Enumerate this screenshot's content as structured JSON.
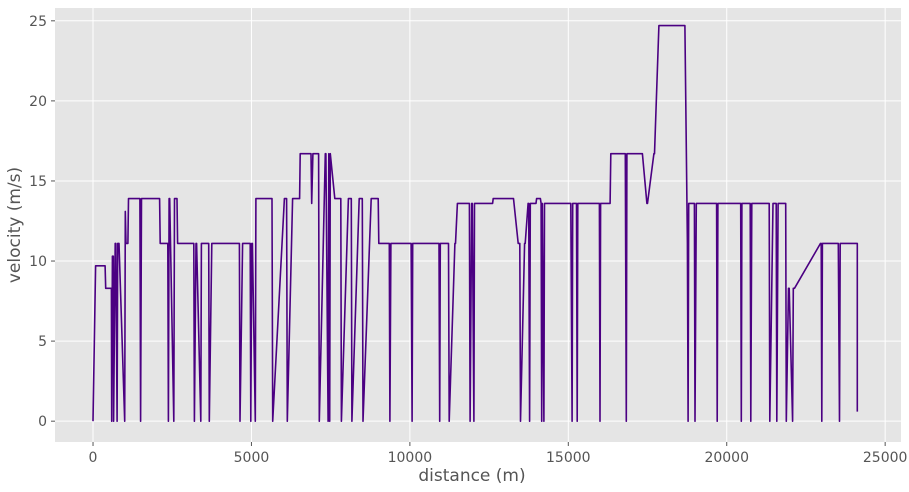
{
  "chart_data": {
    "type": "line",
    "title": "",
    "xlabel": "distance (m)",
    "ylabel": "velocity (m/s)",
    "xlim": [
      -1200,
      25500
    ],
    "ylim": [
      -1.3,
      25.8
    ],
    "x_ticks": [
      0,
      5000,
      10000,
      15000,
      20000,
      25000
    ],
    "x_tick_labels": [
      "0",
      "5000",
      "10000",
      "15000",
      "20000",
      "25000"
    ],
    "y_ticks": [
      0,
      5,
      10,
      15,
      20,
      25
    ],
    "y_tick_labels": [
      "0",
      "5",
      "10",
      "15",
      "20",
      "25"
    ],
    "grid": true,
    "colors": {
      "background": "#e5e5e5",
      "grid": "#ffffff",
      "line": "#4b0082"
    },
    "series": [
      {
        "x": [
          0,
          80,
          380,
          400,
          580,
          590,
          610,
          640,
          650,
          700,
          720,
          760,
          780,
          820,
          1000,
          1020,
          1040,
          1100,
          1120,
          1480,
          1500,
          1530,
          1560,
          2100,
          2120,
          2360,
          2380,
          2400,
          2420,
          2550,
          2570,
          2650,
          2670,
          2860,
          2880,
          3180,
          3200,
          3250,
          3270,
          3400,
          3420,
          3650,
          3670,
          3750,
          3770,
          4620,
          4640,
          4720,
          4740,
          4960,
          4980,
          5010,
          5030,
          5120,
          5140,
          5250,
          5270,
          5650,
          5670,
          6040,
          6060,
          6110,
          6130,
          6300,
          6320,
          6520,
          6540,
          6880,
          6900,
          6940,
          6960,
          7120,
          7140,
          7330,
          7350,
          7420,
          7440,
          7470,
          7490,
          7630,
          7650,
          7820,
          7840,
          8060,
          8080,
          8150,
          8170,
          8400,
          8420,
          8500,
          8520,
          8780,
          8800,
          9000,
          9020,
          9350,
          9370,
          9400,
          9420,
          10020,
          10040,
          10070,
          10090,
          10920,
          10940,
          10960,
          10980,
          11220,
          11240,
          11420,
          11440,
          11500,
          11520,
          11880,
          11900,
          11950,
          11970,
          12020,
          12040,
          12560,
          12580,
          12610,
          12630,
          13250,
          13270,
          13420,
          13440,
          13470,
          13490,
          13620,
          13640,
          13730,
          13750,
          13780,
          13800,
          13980,
          14000,
          14120,
          14140,
          14160,
          14180,
          14230,
          14250,
          15060,
          15080,
          15120,
          15140,
          15260,
          15280,
          15300,
          15320,
          15960,
          15980,
          16000,
          16020,
          16300,
          16320,
          16320,
          16340,
          16780,
          16800,
          16830,
          16850,
          17320,
          17340,
          17480,
          17500,
          17700,
          17720,
          17860,
          17880,
          18660,
          18680,
          18760,
          18780,
          18800,
          18820,
          18980,
          19000,
          19040,
          19060,
          19680,
          19700,
          19720,
          19740,
          20440,
          20460,
          20480,
          20500,
          20740,
          20760,
          20790,
          20810,
          21340,
          21360,
          21460,
          21480,
          21560,
          21580,
          21620,
          21640,
          21860,
          21880,
          21950,
          21970,
          22080,
          22100,
          22120,
          22140,
          22960,
          22980,
          23000,
          23020,
          23100,
          23120,
          23500,
          23520,
          23560,
          23580,
          24100,
          24120,
          24120
        ],
        "y": [
          0,
          9.7,
          9.7,
          8.3,
          8.3,
          0,
          10.3,
          10.3,
          0,
          11.1,
          11.1,
          0,
          11.1,
          11.1,
          0,
          13.1,
          11.1,
          11.1,
          13.9,
          13.9,
          0,
          13.9,
          13.9,
          13.9,
          11.1,
          11.1,
          0,
          13.9,
          13.9,
          0,
          13.9,
          13.9,
          11.1,
          11.1,
          11.1,
          11.1,
          0,
          11.1,
          11.1,
          0,
          11.1,
          11.1,
          0,
          11.1,
          11.1,
          11.1,
          0,
          11.1,
          11.1,
          11.1,
          0,
          11.1,
          11.1,
          0,
          13.9,
          13.9,
          13.9,
          13.9,
          0,
          13.9,
          13.9,
          13.9,
          0,
          13.9,
          13.9,
          13.9,
          16.7,
          16.7,
          13.6,
          16.7,
          16.7,
          16.7,
          0,
          16.7,
          16.7,
          0,
          16.7,
          0,
          16.7,
          13.9,
          13.9,
          13.9,
          0,
          13.9,
          13.9,
          13.9,
          0,
          13.9,
          13.9,
          13.9,
          0,
          13.9,
          13.9,
          13.9,
          11.1,
          11.1,
          0,
          11.1,
          11.1,
          11.1,
          11.1,
          0,
          11.1,
          11.1,
          0,
          11.1,
          11.1,
          11.1,
          0,
          11.1,
          11.1,
          13.6,
          13.6,
          13.6,
          0,
          13.6,
          13.6,
          0,
          13.6,
          13.6,
          13.6,
          13.6,
          13.9,
          13.9,
          13.9,
          11.1,
          11.1,
          11.1,
          0,
          11.1,
          11.1,
          13.6,
          13.6,
          0,
          13.6,
          13.6,
          13.9,
          13.9,
          13.6,
          0,
          13.6,
          0,
          13.6,
          13.6,
          13.6,
          0,
          13.6,
          13.6,
          0,
          13.6,
          13.6,
          13.6,
          13.6,
          0,
          13.6,
          13.6,
          13.6,
          13.6,
          16.7,
          16.7,
          16.7,
          0,
          16.7,
          16.7,
          16.7,
          13.6,
          13.6,
          16.7,
          16.7,
          24.7,
          24.7,
          24.7,
          24.7,
          11.1,
          0,
          13.6,
          13.6,
          13.6,
          0,
          13.6,
          13.6,
          13.6,
          0,
          13.6,
          13.6,
          13.6,
          0,
          13.6,
          13.6,
          13.6,
          0,
          13.6,
          13.6,
          13.6,
          0,
          13.6,
          13.6,
          13.6,
          0,
          13.6,
          13.6,
          13.6,
          0,
          8.3,
          8.3,
          0,
          8.3,
          8.3,
          8.3,
          11.1,
          11.1,
          0,
          11.1,
          11.1,
          11.1,
          11.1,
          11.1,
          0,
          11.1,
          11.1,
          11.1,
          0.6
        ]
      }
    ]
  }
}
